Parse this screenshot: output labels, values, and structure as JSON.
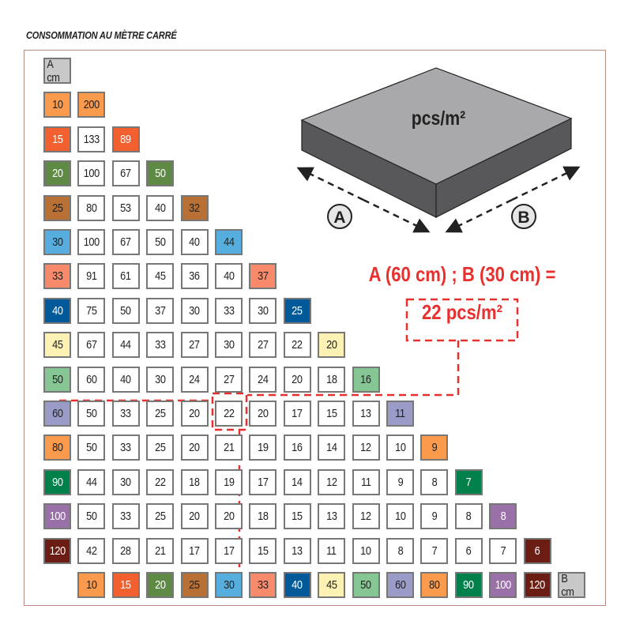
{
  "title": "CONSOMMATION AU MÈTRE CARRÉ",
  "table": {
    "row_axis_label": "A cm",
    "col_axis_label": "B cm",
    "axis_label_color": "#c8c8c8",
    "rows": [
      {
        "label": "10",
        "color": "#f99a4c",
        "text": "#222",
        "values": [
          "200"
        ]
      },
      {
        "label": "15",
        "color": "#f2602f",
        "text": "#fff",
        "values": [
          "133",
          "89"
        ]
      },
      {
        "label": "20",
        "color": "#5f8a45",
        "text": "#fff",
        "values": [
          "100",
          "67",
          "50"
        ]
      },
      {
        "label": "25",
        "color": "#b87035",
        "text": "#222",
        "values": [
          "80",
          "53",
          "40",
          "32"
        ]
      },
      {
        "label": "30",
        "color": "#56aede",
        "text": "#222",
        "values": [
          "100",
          "67",
          "50",
          "40",
          "44"
        ]
      },
      {
        "label": "33",
        "color": "#f78a6a",
        "text": "#222",
        "values": [
          "91",
          "61",
          "45",
          "36",
          "40",
          "37"
        ]
      },
      {
        "label": "40",
        "color": "#005a9a",
        "text": "#fff",
        "values": [
          "75",
          "50",
          "37",
          "30",
          "33",
          "30",
          "25"
        ]
      },
      {
        "label": "45",
        "color": "#fdf2b4",
        "text": "#222",
        "values": [
          "67",
          "44",
          "33",
          "27",
          "30",
          "27",
          "22",
          "20"
        ]
      },
      {
        "label": "50",
        "color": "#86c695",
        "text": "#222",
        "values": [
          "60",
          "40",
          "30",
          "24",
          "27",
          "24",
          "20",
          "18",
          "16"
        ]
      },
      {
        "label": "60",
        "color": "#9b9bc8",
        "text": "#222",
        "values": [
          "50",
          "33",
          "25",
          "20",
          "22",
          "20",
          "17",
          "15",
          "13",
          "11"
        ]
      },
      {
        "label": "80",
        "color": "#f99a4c",
        "text": "#222",
        "values": [
          "50",
          "33",
          "25",
          "20",
          "21",
          "19",
          "16",
          "14",
          "12",
          "10",
          "9"
        ]
      },
      {
        "label": "90",
        "color": "#00804a",
        "text": "#fff",
        "values": [
          "44",
          "30",
          "22",
          "18",
          "19",
          "17",
          "14",
          "12",
          "11",
          "9",
          "8",
          "7"
        ]
      },
      {
        "label": "100",
        "color": "#9a70a8",
        "text": "#fff",
        "values": [
          "50",
          "33",
          "25",
          "20",
          "20",
          "18",
          "15",
          "13",
          "12",
          "10",
          "9",
          "8",
          "8"
        ]
      },
      {
        "label": "120",
        "color": "#6b1d14",
        "text": "#fff",
        "values": [
          "42",
          "28",
          "21",
          "17",
          "17",
          "15",
          "13",
          "11",
          "10",
          "8",
          "7",
          "6",
          "7",
          "6"
        ]
      }
    ]
  },
  "diagram": {
    "tile_label": "pcs/m²",
    "side_a": "A",
    "side_b": "B"
  },
  "example": {
    "formula": "A (60 cm) ; B (30 cm) =",
    "result": "22 pcs/m²",
    "highlight_color": "#e8312f"
  }
}
